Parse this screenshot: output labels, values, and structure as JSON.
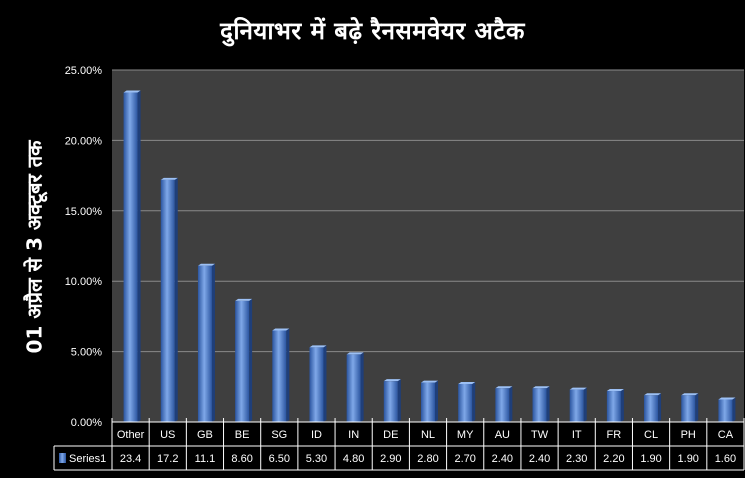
{
  "chart_data": {
    "type": "bar",
    "title": "दुनियाभर में बढ़े रैनसमवेयर अटैक",
    "ylabel": "01 अप्रैल से 3 अक्टूबर तक",
    "xlabel": "",
    "categories": [
      "Other",
      "US",
      "GB",
      "BE",
      "SG",
      "ID",
      "IN",
      "DE",
      "NL",
      "MY",
      "AU",
      "TW",
      "IT",
      "FR",
      "CL",
      "PH",
      "CA"
    ],
    "series": [
      {
        "name": "Series1",
        "values": [
          23.4,
          17.2,
          11.1,
          8.6,
          6.5,
          5.3,
          4.8,
          2.9,
          2.8,
          2.7,
          2.4,
          2.4,
          2.3,
          2.2,
          1.9,
          1.9,
          1.6
        ],
        "value_labels": [
          "23.4",
          "17.2",
          "11.1",
          "8.60",
          "6.50",
          "5.30",
          "4.80",
          "2.90",
          "2.80",
          "2.70",
          "2.40",
          "2.40",
          "2.30",
          "2.20",
          "1.90",
          "1.90",
          "1.60"
        ]
      }
    ],
    "yticks": [
      "0.00%",
      "5.00%",
      "10.00%",
      "15.00%",
      "20.00%",
      "25.00%"
    ],
    "ylim": [
      0,
      25
    ],
    "grid": true,
    "legend": "data-table",
    "colors": {
      "bar": "#3d6fc2",
      "bar_light": "#7fa8e8",
      "plot_bg": "#3f3f3f",
      "grid": "#8a8a8a"
    }
  }
}
